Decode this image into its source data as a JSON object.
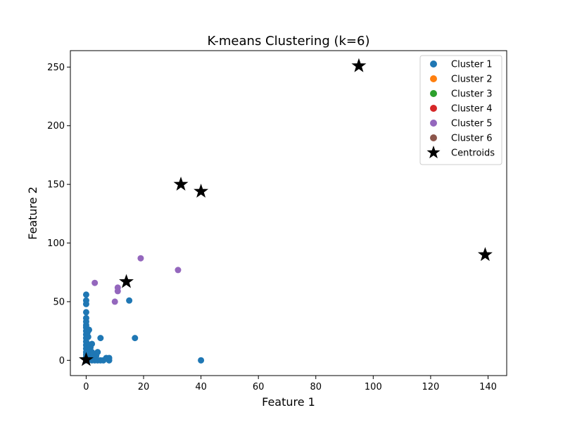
{
  "chart_data": {
    "type": "scatter",
    "title": "K-means Clustering (k=6)",
    "xlabel": "Feature 1",
    "ylabel": "Feature 2",
    "xlim": [
      -5.5,
      146.5
    ],
    "ylim": [
      -13,
      264
    ],
    "xticks": [
      0,
      20,
      40,
      60,
      80,
      100,
      120,
      140
    ],
    "yticks": [
      0,
      50,
      100,
      150,
      200,
      250
    ],
    "grid": false,
    "legend_position": "top-right",
    "series": [
      {
        "name": "Cluster 1",
        "color": "#1f77b4",
        "points": [
          [
            0,
            56
          ],
          [
            0,
            51
          ],
          [
            0,
            48
          ],
          [
            0,
            41
          ],
          [
            0,
            36
          ],
          [
            0,
            33
          ],
          [
            0,
            30
          ],
          [
            0,
            28
          ],
          [
            0,
            25
          ],
          [
            0,
            22
          ],
          [
            0,
            19
          ],
          [
            0,
            16
          ],
          [
            0,
            13
          ],
          [
            0,
            10
          ],
          [
            0,
            7
          ],
          [
            0,
            5
          ],
          [
            0,
            3
          ],
          [
            0,
            1
          ],
          [
            0,
            0
          ],
          [
            0.5,
            24
          ],
          [
            0.7,
            20
          ],
          [
            1,
            26
          ],
          [
            1,
            13
          ],
          [
            1,
            8
          ],
          [
            1,
            4
          ],
          [
            1,
            1
          ],
          [
            1.5,
            11
          ],
          [
            2,
            14
          ],
          [
            2,
            7
          ],
          [
            2,
            3
          ],
          [
            2,
            0
          ],
          [
            2.5,
            5
          ],
          [
            3,
            1
          ],
          [
            3,
            0
          ],
          [
            3.5,
            4
          ],
          [
            4,
            7
          ],
          [
            4,
            0
          ],
          [
            5,
            19
          ],
          [
            5,
            0
          ],
          [
            6,
            0
          ],
          [
            7,
            2
          ],
          [
            8,
            0
          ],
          [
            8,
            2
          ],
          [
            15,
            51
          ],
          [
            17,
            19
          ],
          [
            40,
            0
          ]
        ]
      },
      {
        "name": "Cluster 2",
        "color": "#ff7f0e",
        "points": []
      },
      {
        "name": "Cluster 3",
        "color": "#2ca02c",
        "points": []
      },
      {
        "name": "Cluster 4",
        "color": "#d62728",
        "points": []
      },
      {
        "name": "Cluster 5",
        "color": "#9467bd",
        "points": [
          [
            3,
            66
          ],
          [
            10,
            50
          ],
          [
            11,
            59
          ],
          [
            11,
            62
          ],
          [
            19,
            87
          ],
          [
            32,
            77
          ]
        ]
      },
      {
        "name": "Cluster 6",
        "color": "#8c564b",
        "points": []
      }
    ],
    "centroids": {
      "name": "Centroids",
      "color": "#000000",
      "points": [
        [
          0,
          0.5
        ],
        [
          14,
          67
        ],
        [
          33,
          150
        ],
        [
          40,
          144
        ],
        [
          95,
          251
        ],
        [
          139,
          90
        ]
      ]
    }
  }
}
